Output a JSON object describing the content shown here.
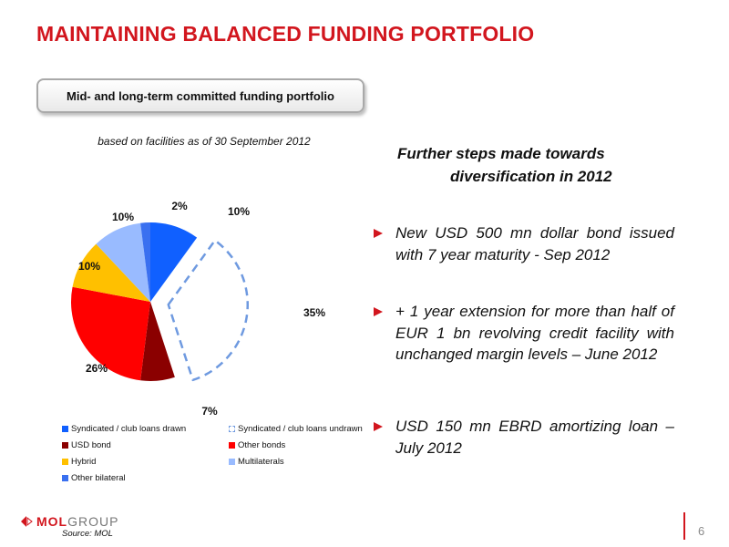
{
  "slide": {
    "title": "MAINTAINING BALANCED FUNDING PORTFOLIO",
    "subtitle": "Mid- and long-term committed funding portfolio",
    "basis_note": "based on facilities as of 30 September 2012",
    "page_number": "6",
    "source": "Source: MOL",
    "logo": {
      "mol": "MOL",
      "group": "GROUP"
    }
  },
  "right_panel": {
    "heading_line1": "Further steps made towards",
    "heading_line2": "diversification in 2012",
    "bullets": [
      "New USD 500 mn dollar bond issued with 7 year maturity - Sep 2012",
      "+ 1 year extension for more than half of EUR 1 bn revolving credit facility with unchanged margin levels – June 2012",
      "USD 150 mn EBRD amortizing loan – July 2012"
    ]
  },
  "colors": {
    "accent_red": "#d2161e",
    "syndicated_drawn": "#1060ff",
    "syndicated_undrawn": "#6f9ae0",
    "usd_bond": "#8b0000",
    "other_bonds": "#ff0000",
    "hybrid": "#ffc000",
    "multilaterals": "#99bbff",
    "other_bilateral": "#3a70f0"
  },
  "chart_data": {
    "type": "pie",
    "title": "",
    "legend_position": "bottom",
    "slices": [
      {
        "label": "Syndicated / club loans drawn",
        "value": 10,
        "display": "10%",
        "color": "#1060ff",
        "style": "solid"
      },
      {
        "label": "Syndicated / club loans undrawn",
        "value": 35,
        "display": "35%",
        "color": "#6f9ae0",
        "style": "dashed-outline"
      },
      {
        "label": "USD bond",
        "value": 7,
        "display": "7%",
        "color": "#8b0000",
        "style": "solid"
      },
      {
        "label": "Other bonds",
        "value": 26,
        "display": "26%",
        "color": "#ff0000",
        "style": "solid"
      },
      {
        "label": "Hybrid",
        "value": 10,
        "display": "10%",
        "color": "#ffc000",
        "style": "solid"
      },
      {
        "label": "Multilaterals",
        "value": 10,
        "display": "10%",
        "color": "#99bbff",
        "style": "solid"
      },
      {
        "label": "Other bilateral",
        "value": 2,
        "display": "2%",
        "color": "#3a70f0",
        "style": "solid"
      }
    ]
  }
}
